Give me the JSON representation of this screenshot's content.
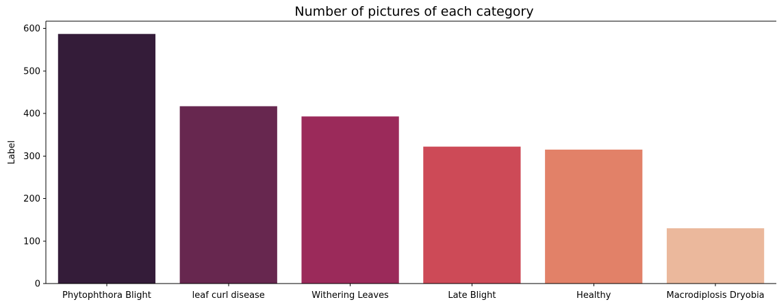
{
  "chart_data": {
    "type": "bar",
    "title": "Number of pictures of each category",
    "xlabel": "",
    "ylabel": "Label",
    "categories": [
      "Phytophthora Blight",
      "leaf curl disease",
      "Withering Leaves",
      "Late Blight",
      "Healthy",
      "Macrodiplosis Dryobia"
    ],
    "values": [
      587,
      417,
      393,
      322,
      315,
      130
    ],
    "colors": [
      "#341c39",
      "#67274f",
      "#9b2a5a",
      "#cd4a57",
      "#e28168",
      "#ebb89c"
    ],
    "yticks": [
      0,
      100,
      200,
      300,
      400,
      500,
      600
    ],
    "ylim": [
      0,
      617
    ],
    "grid": false,
    "legend": "none"
  }
}
